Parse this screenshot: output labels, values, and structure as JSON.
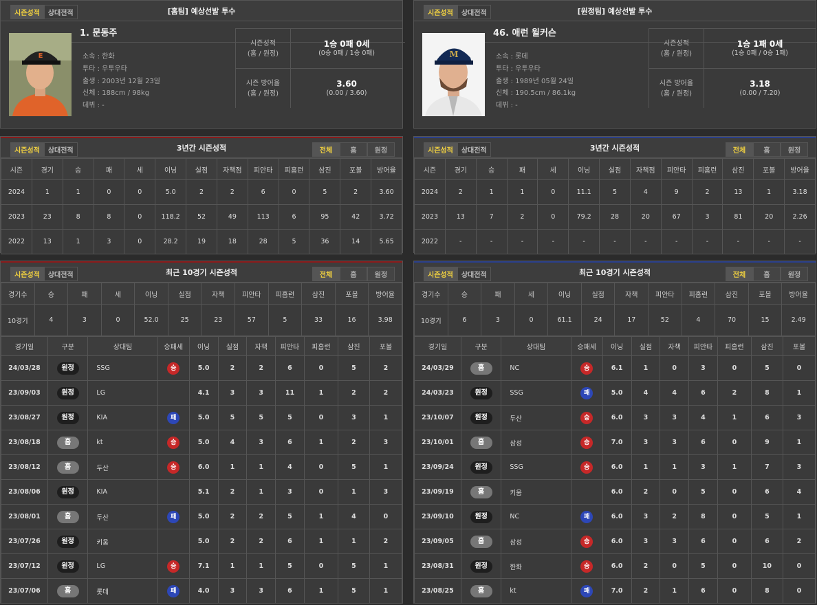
{
  "tabs": {
    "season": "시즌성적",
    "versus": "상대전적"
  },
  "filters": {
    "all": "전체",
    "home": "홈",
    "away": "원정"
  },
  "labels": {
    "team": "소속 : ",
    "hand": "투타 : ",
    "birth": "출생 : ",
    "body": "신체 : ",
    "debut": "데뷔 : ",
    "season_record": "시즌성적",
    "season_era": "시즌 방어율",
    "split": "(홈 / 원정)",
    "three_year_title": "3년간 시즌성적",
    "recent_title": "최근 10경기 시즌성적"
  },
  "three_year_headers": [
    "시즌",
    "경기",
    "승",
    "패",
    "세",
    "이닝",
    "실점",
    "자책점",
    "피안타",
    "피홈런",
    "삼진",
    "포볼",
    "방어율"
  ],
  "recent_headers": [
    "경기수",
    "승",
    "패",
    "세",
    "이닝",
    "실점",
    "자책",
    "피안타",
    "피홈런",
    "삼진",
    "포볼",
    "방어율"
  ],
  "game_headers": [
    "경기일",
    "구분",
    "상대팀",
    "승패세",
    "이닝",
    "실점",
    "자책",
    "피안타",
    "피홈런",
    "삼진",
    "포볼"
  ],
  "home": {
    "header": "[홈팀] 예상선발 투수",
    "name": "1. 문동주",
    "team": "한화",
    "hand": "우투우타",
    "birth": "2003년 12월 23일",
    "body": "188cm / 98kg",
    "debut": "-",
    "record_main": "1승 0패 0세",
    "record_split": "(0승 0패 / 1승 0패)",
    "era_main": "3.60",
    "era_split": "(0.00 / 3.60)",
    "three_year": [
      [
        "2024",
        "1",
        "1",
        "0",
        "0",
        "5.0",
        "2",
        "2",
        "6",
        "0",
        "5",
        "2",
        "3.60"
      ],
      [
        "2023",
        "23",
        "8",
        "8",
        "0",
        "118.2",
        "52",
        "49",
        "113",
        "6",
        "95",
        "42",
        "3.72"
      ],
      [
        "2022",
        "13",
        "1",
        "3",
        "0",
        "28.2",
        "19",
        "18",
        "28",
        "5",
        "36",
        "14",
        "5.65"
      ]
    ],
    "recent": [
      "10경기",
      "4",
      "3",
      "0",
      "52.0",
      "25",
      "23",
      "57",
      "5",
      "33",
      "16",
      "3.98"
    ],
    "games": [
      {
        "date": "24/03/28",
        "loc": "원정",
        "opp": "SSG",
        "res": "승",
        "ip": "5.0",
        "r": "2",
        "er": "2",
        "h": "6",
        "hr": "0",
        "so": "5",
        "bb": "2"
      },
      {
        "date": "23/09/03",
        "loc": "원정",
        "opp": "LG",
        "res": "",
        "ip": "4.1",
        "r": "3",
        "er": "3",
        "h": "11",
        "hr": "1",
        "so": "2",
        "bb": "2"
      },
      {
        "date": "23/08/27",
        "loc": "원정",
        "opp": "KIA",
        "res": "패",
        "ip": "5.0",
        "r": "5",
        "er": "5",
        "h": "5",
        "hr": "0",
        "so": "3",
        "bb": "1"
      },
      {
        "date": "23/08/18",
        "loc": "홈",
        "opp": "kt",
        "res": "승",
        "ip": "5.0",
        "r": "4",
        "er": "3",
        "h": "6",
        "hr": "1",
        "so": "2",
        "bb": "3"
      },
      {
        "date": "23/08/12",
        "loc": "홈",
        "opp": "두산",
        "res": "승",
        "ip": "6.0",
        "r": "1",
        "er": "1",
        "h": "4",
        "hr": "0",
        "so": "5",
        "bb": "1"
      },
      {
        "date": "23/08/06",
        "loc": "원정",
        "opp": "KIA",
        "res": "",
        "ip": "5.1",
        "r": "2",
        "er": "1",
        "h": "3",
        "hr": "0",
        "so": "1",
        "bb": "3"
      },
      {
        "date": "23/08/01",
        "loc": "홈",
        "opp": "두산",
        "res": "패",
        "ip": "5.0",
        "r": "2",
        "er": "2",
        "h": "5",
        "hr": "1",
        "so": "4",
        "bb": "0"
      },
      {
        "date": "23/07/26",
        "loc": "원정",
        "opp": "키움",
        "res": "",
        "ip": "5.0",
        "r": "2",
        "er": "2",
        "h": "6",
        "hr": "1",
        "so": "1",
        "bb": "2"
      },
      {
        "date": "23/07/12",
        "loc": "원정",
        "opp": "LG",
        "res": "승",
        "ip": "7.1",
        "r": "1",
        "er": "1",
        "h": "5",
        "hr": "0",
        "so": "5",
        "bb": "1"
      },
      {
        "date": "23/07/06",
        "loc": "홈",
        "opp": "롯데",
        "res": "패",
        "ip": "4.0",
        "r": "3",
        "er": "3",
        "h": "6",
        "hr": "1",
        "so": "5",
        "bb": "1"
      }
    ]
  },
  "away": {
    "header": "[원정팀] 예상선발 투수",
    "name": "46. 애런 윌커슨",
    "team": "롯데",
    "hand": "우투우타",
    "birth": "1989년 05월 24일",
    "body": "190.5cm / 86.1kg",
    "debut": "-",
    "record_main": "1승 1패 0세",
    "record_split": "(1승 0패 / 0승 1패)",
    "era_main": "3.18",
    "era_split": "(0.00 / 7.20)",
    "three_year": [
      [
        "2024",
        "2",
        "1",
        "1",
        "0",
        "11.1",
        "5",
        "4",
        "9",
        "2",
        "13",
        "1",
        "3.18"
      ],
      [
        "2023",
        "13",
        "7",
        "2",
        "0",
        "79.2",
        "28",
        "20",
        "67",
        "3",
        "81",
        "20",
        "2.26"
      ],
      [
        "2022",
        "-",
        "-",
        "-",
        "-",
        "-",
        "-",
        "-",
        "-",
        "-",
        "-",
        "-",
        "-"
      ]
    ],
    "recent": [
      "10경기",
      "6",
      "3",
      "0",
      "61.1",
      "24",
      "17",
      "52",
      "4",
      "70",
      "15",
      "2.49"
    ],
    "games": [
      {
        "date": "24/03/29",
        "loc": "홈",
        "opp": "NC",
        "res": "승",
        "ip": "6.1",
        "r": "1",
        "er": "0",
        "h": "3",
        "hr": "0",
        "so": "5",
        "bb": "0"
      },
      {
        "date": "24/03/23",
        "loc": "원정",
        "opp": "SSG",
        "res": "패",
        "ip": "5.0",
        "r": "4",
        "er": "4",
        "h": "6",
        "hr": "2",
        "so": "8",
        "bb": "1"
      },
      {
        "date": "23/10/07",
        "loc": "원정",
        "opp": "두산",
        "res": "승",
        "ip": "6.0",
        "r": "3",
        "er": "3",
        "h": "4",
        "hr": "1",
        "so": "6",
        "bb": "3"
      },
      {
        "date": "23/10/01",
        "loc": "홈",
        "opp": "삼성",
        "res": "승",
        "ip": "7.0",
        "r": "3",
        "er": "3",
        "h": "6",
        "hr": "0",
        "so": "9",
        "bb": "1"
      },
      {
        "date": "23/09/24",
        "loc": "원정",
        "opp": "SSG",
        "res": "승",
        "ip": "6.0",
        "r": "1",
        "er": "1",
        "h": "3",
        "hr": "1",
        "so": "7",
        "bb": "3"
      },
      {
        "date": "23/09/19",
        "loc": "홈",
        "opp": "키움",
        "res": "",
        "ip": "6.0",
        "r": "2",
        "er": "0",
        "h": "5",
        "hr": "0",
        "so": "6",
        "bb": "4"
      },
      {
        "date": "23/09/10",
        "loc": "원정",
        "opp": "NC",
        "res": "패",
        "ip": "6.0",
        "r": "3",
        "er": "2",
        "h": "8",
        "hr": "0",
        "so": "5",
        "bb": "1"
      },
      {
        "date": "23/09/05",
        "loc": "홈",
        "opp": "삼성",
        "res": "승",
        "ip": "6.0",
        "r": "3",
        "er": "3",
        "h": "6",
        "hr": "0",
        "so": "6",
        "bb": "2"
      },
      {
        "date": "23/08/31",
        "loc": "원정",
        "opp": "한화",
        "res": "승",
        "ip": "6.0",
        "r": "2",
        "er": "0",
        "h": "5",
        "hr": "0",
        "so": "10",
        "bb": "0"
      },
      {
        "date": "23/08/25",
        "loc": "홈",
        "opp": "kt",
        "res": "패",
        "ip": "7.0",
        "r": "2",
        "er": "1",
        "h": "6",
        "hr": "0",
        "so": "8",
        "bb": "0"
      }
    ]
  },
  "colors": {
    "win": "#c62828",
    "loss": "#2d47b7",
    "accent": "#f0d040",
    "home_bar": "#8a1a1a",
    "away_bar": "#2a3f8a"
  }
}
